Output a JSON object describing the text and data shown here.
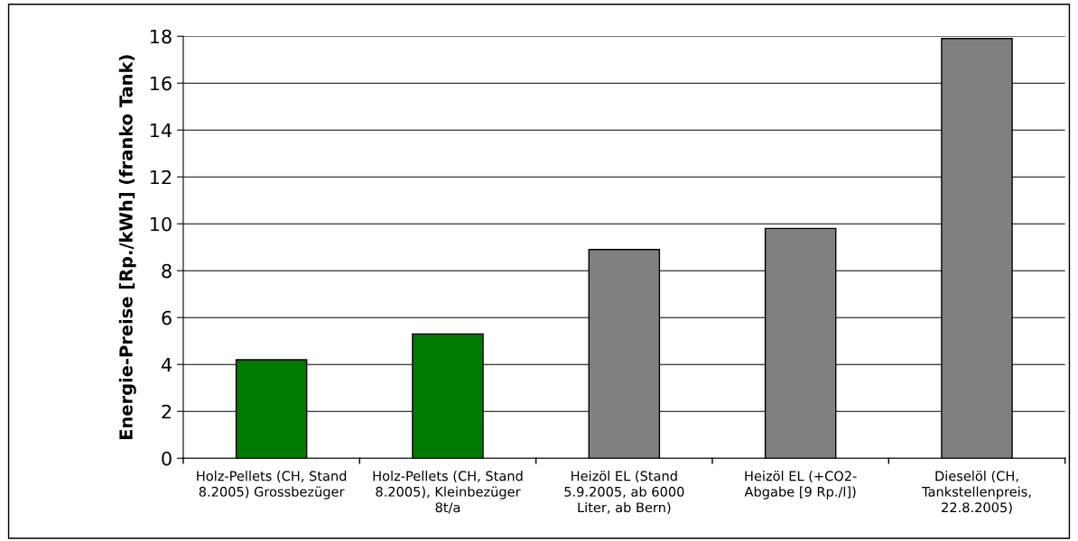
{
  "chart_data": {
    "type": "bar",
    "ylabel": "Energie-Preise [Rp./kWh] (franko Tank)",
    "categories": [
      "Holz-Pellets (CH, Stand\n8.2005) Grossbezüger",
      "Holz-Pellets (CH, Stand\n8.2005), Kleinbezüger\n8t/a",
      "Heizöl EL (Stand\n5.9.2005, ab 6000\nLiter, ab Bern)",
      "Heizöl EL (+CO2-\nAbgabe [9 Rp./l])",
      "Dieselöl (CH,\nTankstellenpreis,\n22.8.2005)"
    ],
    "values": [
      4.2,
      5.3,
      8.9,
      9.8,
      17.9
    ],
    "colors": [
      "#007a00",
      "#007a00",
      "#808080",
      "#808080",
      "#808080"
    ],
    "ylim": [
      0,
      18
    ],
    "yticks": [
      0,
      2,
      4,
      6,
      8,
      10,
      12,
      14,
      16,
      18
    ],
    "grid": "y",
    "legend": false
  }
}
